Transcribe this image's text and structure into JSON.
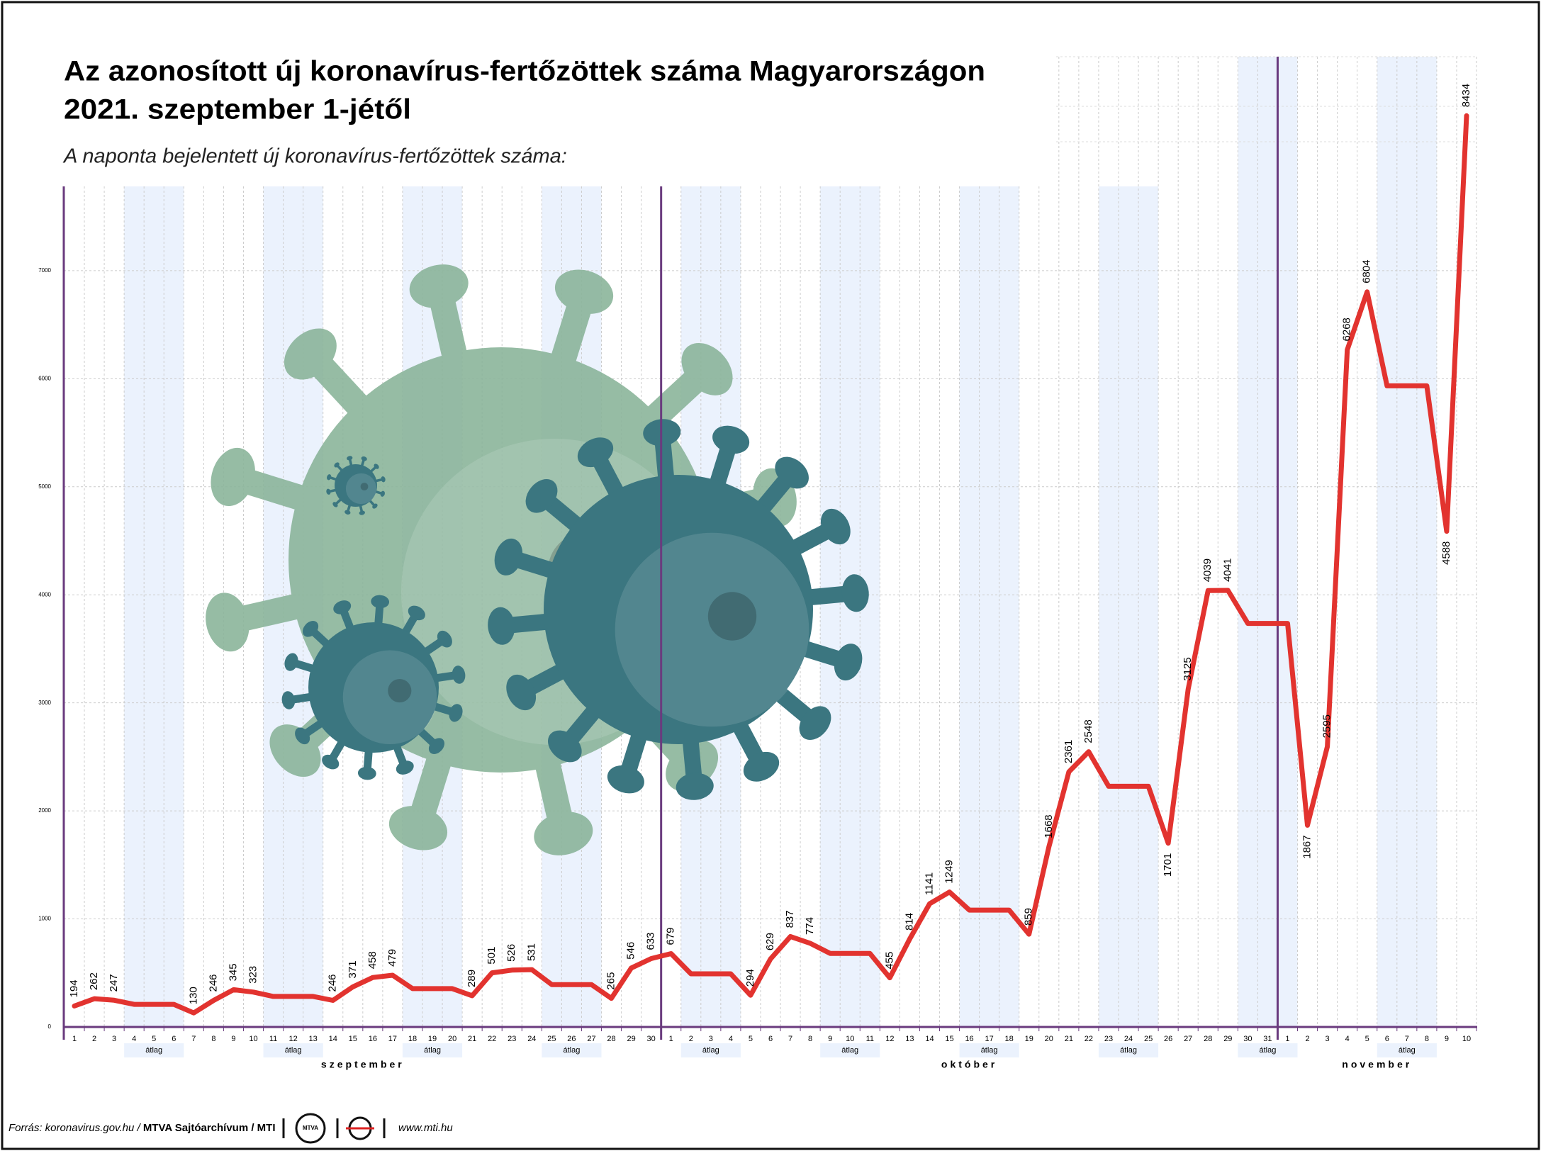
{
  "chart_data": {
    "type": "line",
    "title": [
      "Az azonosított új koronavírus-fertőzöttek száma Magyarországon",
      "2021. szeptember 1-jétől"
    ],
    "subtitle": "A naponta bejelentett új koronavírus-fertőzöttek száma:",
    "categories": [
      "1",
      "2",
      "3",
      "4",
      "5",
      "6",
      "7",
      "8",
      "9",
      "10",
      "11",
      "12",
      "13",
      "14",
      "15",
      "16",
      "17",
      "18",
      "19",
      "20",
      "21",
      "22",
      "23",
      "24",
      "25",
      "26",
      "27",
      "28",
      "29",
      "30",
      "1",
      "2",
      "3",
      "4",
      "5",
      "6",
      "7",
      "8",
      "9",
      "10",
      "11",
      "12",
      "13",
      "14",
      "15",
      "16",
      "17",
      "18",
      "19",
      "20",
      "21",
      "22",
      "23",
      "24",
      "25",
      "26",
      "27",
      "28",
      "29",
      "30",
      "31",
      "1",
      "2",
      "3",
      "4",
      "5",
      "6",
      "7",
      "8",
      "9",
      "10"
    ],
    "months": [
      "szeptember",
      "október",
      "november"
    ],
    "average_label": "átlag",
    "series": [
      {
        "color": "#e2332f",
        "values": [
          194,
          262,
          247,
          209,
          209,
          209,
          130,
          246,
          345,
          323,
          283,
          283,
          283,
          246,
          371,
          458,
          479,
          355,
          355,
          355,
          289,
          501,
          526,
          531,
          392,
          392,
          392,
          265,
          546,
          633,
          679,
          492,
          492,
          492,
          294,
          629,
          837,
          774,
          680,
          680,
          680,
          455,
          814,
          1141,
          1249,
          1082,
          1082,
          1082,
          859,
          1668,
          2361,
          2548,
          2228,
          2228,
          2228,
          1701,
          3125,
          4039,
          4041,
          3735,
          3735,
          3735,
          1867,
          2595,
          6268,
          6804,
          5934,
          5934,
          5934,
          4588,
          8434
        ],
        "value_labels": [
          "194",
          "262",
          "247",
          null,
          null,
          null,
          "130",
          "246",
          "345",
          "323",
          null,
          null,
          null,
          "246",
          "371",
          "458",
          "479",
          null,
          null,
          null,
          "289",
          "501",
          "526",
          "531",
          null,
          null,
          null,
          "265",
          "546",
          "633",
          "679",
          null,
          null,
          null,
          "294",
          "629",
          "837",
          "774",
          null,
          null,
          null,
          "455",
          "814",
          "1141",
          "1249",
          null,
          null,
          null,
          "859",
          "1668",
          "2361",
          "2548",
          null,
          null,
          null,
          "1701",
          "3125",
          "4039",
          "4041",
          null,
          null,
          null,
          "1867",
          "2595",
          "6268",
          "6804",
          null,
          null,
          null,
          "4588",
          "8434"
        ]
      }
    ],
    "ylim": [
      0,
      7780
    ],
    "yticks": [
      0,
      1000,
      2000,
      3000,
      4000,
      5000,
      6000,
      7000
    ],
    "grid": true
  },
  "footer": {
    "source": "Forrás: koronavirus.gov.hu / ",
    "agency": "MTVA Sajtóarchívum / MTI",
    "logo": "MTVA",
    "url": "www.mti.hu"
  }
}
